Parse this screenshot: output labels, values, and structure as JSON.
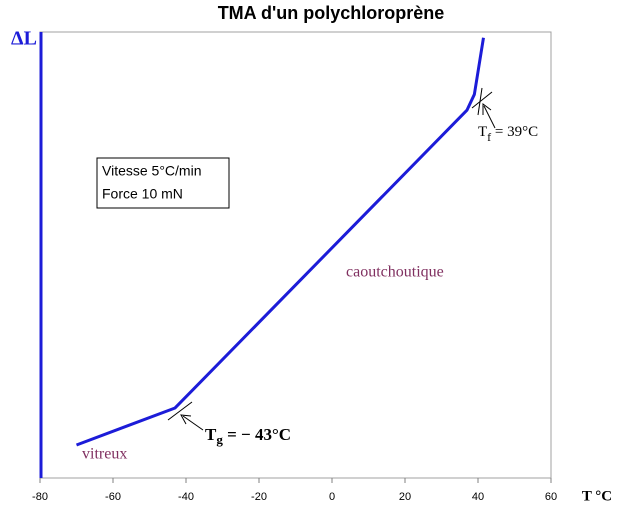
{
  "chart_data": {
    "type": "line",
    "title": "TMA d'un polychloroprène",
    "x_label": "T °C",
    "y_label": "ΔL",
    "x": [
      -70,
      -43,
      37,
      39,
      41.5
    ],
    "series": [
      {
        "name": "polychloroprène",
        "color": "#1c1cd8",
        "values": [
          7.4,
          15.7,
          82.5,
          86,
          98.7
        ]
      }
    ],
    "xlim": [
      -80,
      60
    ],
    "xticks": [
      -80,
      -60,
      -40,
      -20,
      0,
      20,
      40,
      60
    ],
    "ylim": [
      0,
      100
    ],
    "conditions": [
      "Vitesse 5°C/min",
      "Force   10 mN"
    ],
    "regions": [
      "caoutchoutique",
      "vitreux"
    ],
    "tg": {
      "symbol": "T",
      "sub": "g",
      "rest": " = − 43°C"
    },
    "tf": {
      "symbol": "T",
      "sub": "f",
      "rest": " = 39°C"
    }
  }
}
